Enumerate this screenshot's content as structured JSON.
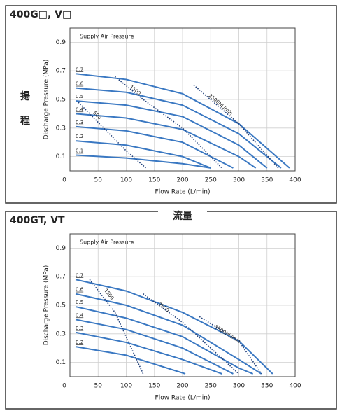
{
  "head_label": [
    "揚",
    "程"
  ],
  "flow_label": "流量",
  "chart_data": [
    {
      "type": "line",
      "title": "400G□, V□",
      "annotation": "Supply Air Pressure",
      "xlabel": "Flow Rate (L/min)",
      "ylabel": "Discharge Pressure (MPa)",
      "xlim": [
        0,
        400
      ],
      "ylim": [
        0,
        1.0
      ],
      "xticks": [
        0,
        50,
        100,
        150,
        200,
        250,
        300,
        350,
        400
      ],
      "yticks": [
        0.1,
        0.3,
        0.5,
        0.7,
        0.9
      ],
      "grid": true,
      "series": [
        {
          "name": "0.7",
          "color": "#3a78c2",
          "dashed": false,
          "x": [
            10,
            100,
            200,
            300,
            390
          ],
          "values": [
            0.68,
            0.64,
            0.54,
            0.33,
            0.02
          ]
        },
        {
          "name": "0.6",
          "color": "#3a78c2",
          "dashed": false,
          "x": [
            10,
            100,
            200,
            300,
            375
          ],
          "values": [
            0.58,
            0.55,
            0.46,
            0.26,
            0.02
          ]
        },
        {
          "name": "0.5",
          "color": "#3a78c2",
          "dashed": false,
          "x": [
            10,
            100,
            200,
            300,
            350
          ],
          "values": [
            0.49,
            0.46,
            0.38,
            0.18,
            0.02
          ]
        },
        {
          "name": "0.4",
          "color": "#3a78c2",
          "dashed": false,
          "x": [
            10,
            100,
            200,
            300,
            330
          ],
          "values": [
            0.4,
            0.37,
            0.29,
            0.1,
            0.02
          ]
        },
        {
          "name": "0.3",
          "color": "#3a78c2",
          "dashed": false,
          "x": [
            10,
            100,
            200,
            290
          ],
          "values": [
            0.31,
            0.28,
            0.2,
            0.02
          ]
        },
        {
          "name": "0.2",
          "color": "#3a78c2",
          "dashed": false,
          "x": [
            10,
            100,
            200,
            250
          ],
          "values": [
            0.21,
            0.18,
            0.1,
            0.02
          ]
        },
        {
          "name": "0.1",
          "color": "#3a78c2",
          "dashed": false,
          "x": [
            10,
            100,
            200,
            250
          ],
          "values": [
            0.11,
            0.09,
            0.05,
            0.02
          ]
        },
        {
          "name": "500",
          "color": "#1f3f7a",
          "dashed": true,
          "x": [
            15,
            60,
            100,
            135
          ],
          "values": [
            0.48,
            0.3,
            0.14,
            0.02
          ]
        },
        {
          "name": "1500",
          "color": "#1f3f7a",
          "dashed": true,
          "x": [
            80,
            130,
            200,
            270
          ],
          "values": [
            0.66,
            0.5,
            0.3,
            0.02
          ]
        },
        {
          "name": "2500NL/min",
          "color": "#1f3f7a",
          "dashed": true,
          "x": [
            220,
            300,
            370
          ],
          "values": [
            0.6,
            0.33,
            0.02
          ]
        }
      ]
    },
    {
      "type": "line",
      "title": "400GT, VT",
      "annotation": "Supply Air Pressure",
      "xlabel": "Flow Rate (L/min)",
      "ylabel": "Discharge Pressure (MPa)",
      "xlim": [
        0,
        400
      ],
      "ylim": [
        0,
        1.0
      ],
      "xticks": [
        0,
        50,
        100,
        150,
        200,
        250,
        300,
        350,
        400
      ],
      "yticks": [
        0.1,
        0.3,
        0.5,
        0.7,
        0.9
      ],
      "grid": true,
      "series": [
        {
          "name": "0.7",
          "color": "#3a78c2",
          "dashed": false,
          "x": [
            10,
            100,
            200,
            300,
            360
          ],
          "values": [
            0.68,
            0.6,
            0.45,
            0.25,
            0.02
          ]
        },
        {
          "name": "0.6",
          "color": "#3a78c2",
          "dashed": false,
          "x": [
            10,
            100,
            200,
            300,
            340
          ],
          "values": [
            0.58,
            0.5,
            0.36,
            0.12,
            0.02
          ]
        },
        {
          "name": "0.5",
          "color": "#3a78c2",
          "dashed": false,
          "x": [
            10,
            100,
            200,
            300,
            325
          ],
          "values": [
            0.49,
            0.41,
            0.28,
            0.06,
            0.02
          ]
        },
        {
          "name": "0.4",
          "color": "#3a78c2",
          "dashed": false,
          "x": [
            10,
            100,
            200,
            290
          ],
          "values": [
            0.4,
            0.33,
            0.2,
            0.02
          ]
        },
        {
          "name": "0.3",
          "color": "#3a78c2",
          "dashed": false,
          "x": [
            10,
            100,
            200,
            270
          ],
          "values": [
            0.31,
            0.24,
            0.12,
            0.02
          ]
        },
        {
          "name": "0.2",
          "color": "#3a78c2",
          "dashed": false,
          "x": [
            10,
            100,
            205
          ],
          "values": [
            0.21,
            0.15,
            0.02
          ]
        },
        {
          "name": "1500",
          "color": "#1f3f7a",
          "dashed": true,
          "x": [
            35,
            80,
            130
          ],
          "values": [
            0.68,
            0.45,
            0.02
          ]
        },
        {
          "name": "2500",
          "color": "#1f3f7a",
          "dashed": true,
          "x": [
            130,
            200,
            250,
            300
          ],
          "values": [
            0.58,
            0.38,
            0.2,
            0.02
          ]
        },
        {
          "name": "3500NL/min",
          "color": "#1f3f7a",
          "dashed": true,
          "x": [
            230,
            300,
            340
          ],
          "values": [
            0.42,
            0.25,
            0.02
          ]
        }
      ]
    }
  ]
}
